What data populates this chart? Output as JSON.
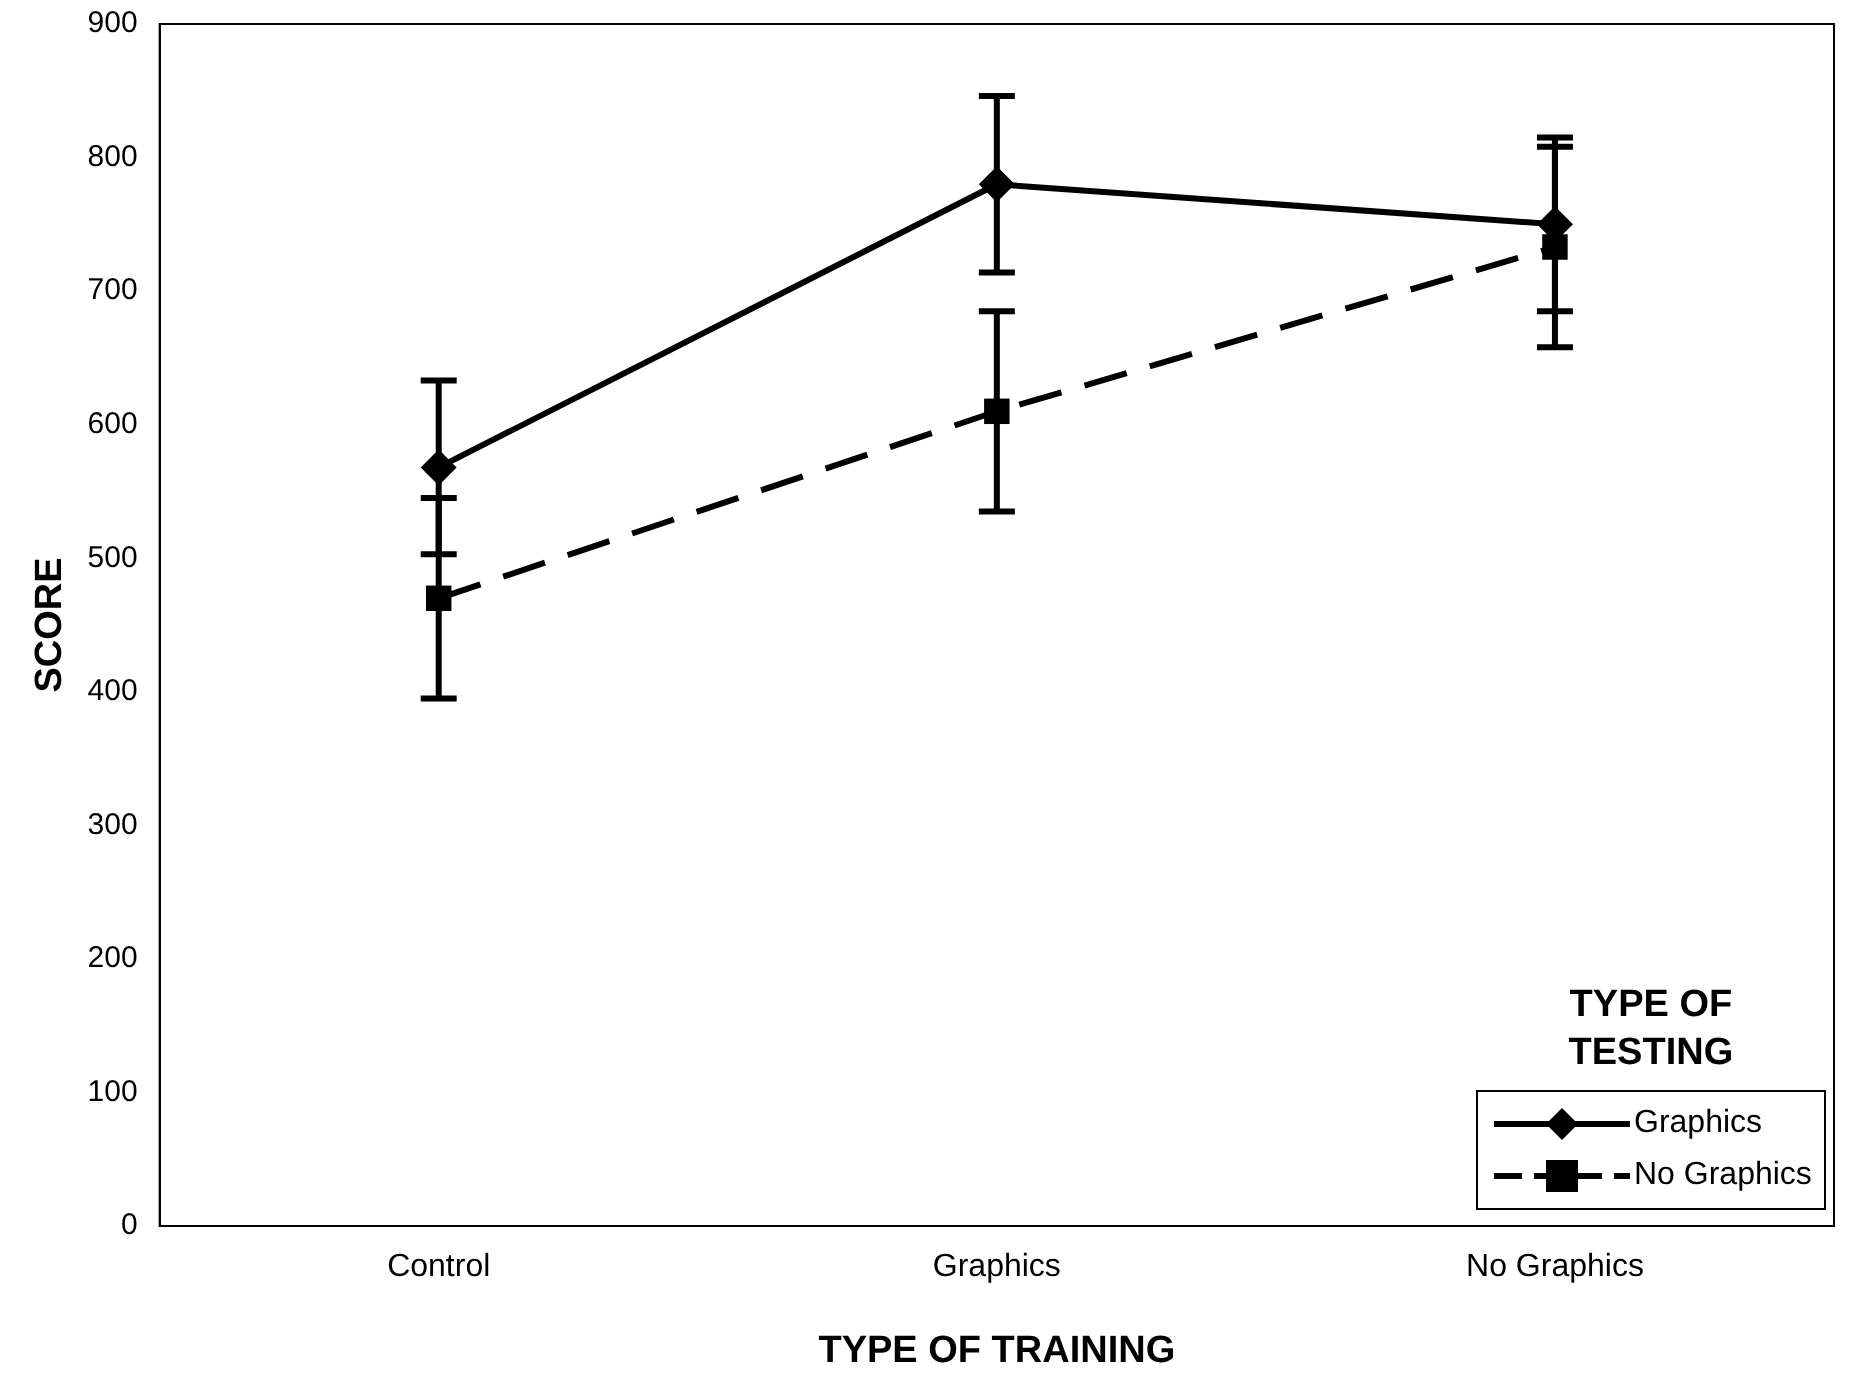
{
  "chart_data": {
    "type": "line",
    "xlabel": "TYPE OF TRAINING",
    "ylabel": "SCORE",
    "legend_title": "TYPE OF TESTING",
    "legend": "bottom right",
    "grid": false,
    "categories": [
      "Control",
      "Graphics",
      "No Graphics"
    ],
    "ylim": [
      0,
      900
    ],
    "yticks": [
      0,
      100,
      200,
      300,
      400,
      500,
      600,
      700,
      800,
      900
    ],
    "series": [
      {
        "name": "Graphics",
        "color": "#000000",
        "marker": "diamond",
        "line_style": "solid",
        "values": [
          568,
          780,
          750
        ],
        "errors": [
          65,
          66,
          65
        ]
      },
      {
        "name": "No Graphics",
        "color": "#000000",
        "marker": "square",
        "line_style": "dashed",
        "values": [
          470,
          610,
          733
        ],
        "errors": [
          75,
          75,
          75
        ]
      }
    ]
  }
}
